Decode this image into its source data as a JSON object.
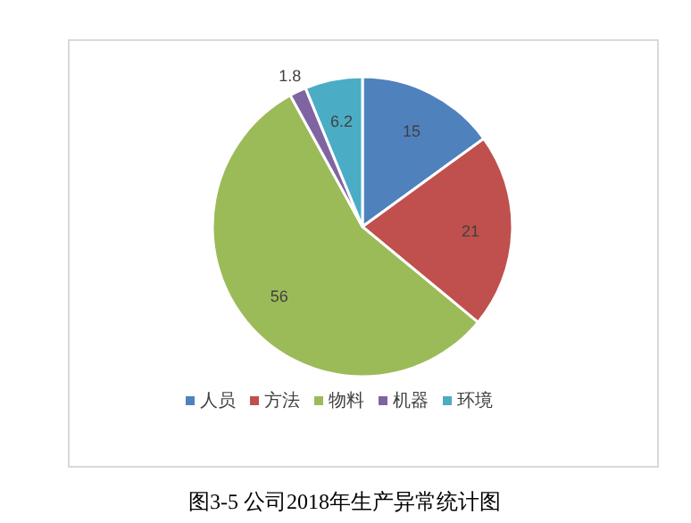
{
  "chart_data": {
    "type": "pie",
    "categories": [
      "人员",
      "方法",
      "物料",
      "机器",
      "环境"
    ],
    "values": [
      15,
      21,
      56,
      1.8,
      6.2
    ],
    "colors": [
      "#4f81bd",
      "#c0504d",
      "#9bbb59",
      "#8064a2",
      "#4bacc6"
    ],
    "data_labels": true,
    "legend": "bottom",
    "annotations": [
      "图3-5    公司2018年生产异常统计图"
    ]
  }
}
